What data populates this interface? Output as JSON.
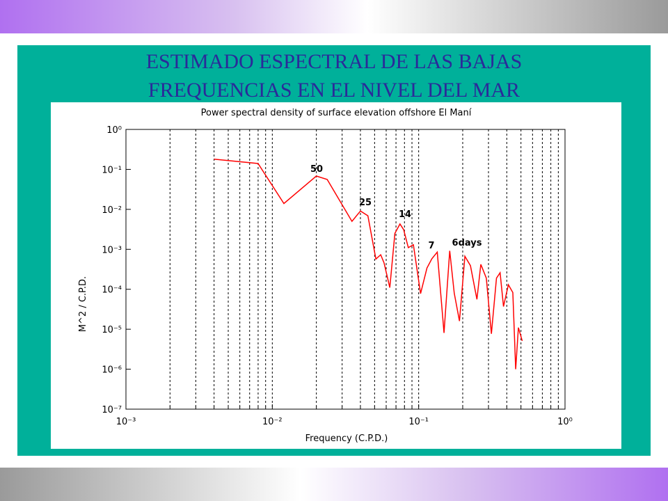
{
  "slide": {
    "title_lines": [
      "ESTIMADO ESPECTRAL DE LAS BAJAS",
      "FREQUENCIAS EN EL NIVEL DEL MAR"
    ]
  },
  "chart_data": {
    "type": "line",
    "title": "Power spectral density of surface elevation offshore El Maní",
    "x_label": "Frequency (C.P.D.)",
    "y_label": "M^2 / C.P.D.",
    "x_log": true,
    "y_log": true,
    "grid": "x",
    "color": "#ff0000",
    "xlim": [
      0.001,
      1
    ],
    "ylim": [
      1e-07,
      1
    ],
    "xticks": [
      {
        "value": 0.001,
        "label": "10⁻³"
      },
      {
        "value": 0.01,
        "label": "10⁻²"
      },
      {
        "value": 0.1,
        "label": "10⁻¹"
      },
      {
        "value": 1,
        "label": "10⁰"
      }
    ],
    "xminorticks": [
      0.002,
      0.003,
      0.004,
      0.005,
      0.006,
      0.007,
      0.008,
      0.009,
      0.02,
      0.03,
      0.04,
      0.05,
      0.06,
      0.07,
      0.08,
      0.09,
      0.2,
      0.3,
      0.4,
      0.5,
      0.6,
      0.7,
      0.8,
      0.9
    ],
    "yticks": [
      {
        "value": 1,
        "label": "10⁰"
      },
      {
        "value": 0.1,
        "label": "10⁻¹"
      },
      {
        "value": 0.01,
        "label": "10⁻²"
      },
      {
        "value": 0.001,
        "label": "10⁻³"
      },
      {
        "value": 0.0001,
        "label": "10⁻⁴"
      },
      {
        "value": 1e-05,
        "label": "10⁻⁵"
      },
      {
        "value": 1e-06,
        "label": "10⁻⁶"
      },
      {
        "value": 1e-07,
        "label": "10⁻⁷"
      }
    ],
    "annotations": [
      "50",
      "25",
      "14",
      "7",
      "6days"
    ],
    "x": [
      0.004,
      0.008,
      0.012,
      0.02,
      0.0237,
      0.035,
      0.04,
      0.045,
      0.051,
      0.055,
      0.058,
      0.0635,
      0.0688,
      0.0745,
      0.079,
      0.085,
      0.092,
      0.103,
      0.114,
      0.123,
      0.134,
      0.149,
      0.163,
      0.175,
      0.19,
      0.207,
      0.226,
      0.25,
      0.266,
      0.29,
      0.314,
      0.34,
      0.36,
      0.38,
      0.41,
      0.44,
      0.46,
      0.48,
      0.51
    ],
    "values": [
      0.18,
      0.14,
      0.014,
      0.068,
      0.056,
      0.005,
      0.0091,
      0.0069,
      0.00057,
      0.00073,
      0.00046,
      0.00011,
      0.0025,
      0.0043,
      0.0031,
      0.0011,
      0.0013,
      7.8e-05,
      0.00034,
      0.00058,
      0.00085,
      8.1e-06,
      0.00092,
      8e-05,
      1.6e-05,
      0.00067,
      0.00039,
      5.6e-05,
      0.00042,
      0.00019,
      7.7e-06,
      0.00019,
      0.00026,
      3.7e-05,
      0.00013,
      8.3e-05,
      1e-06,
      1.1e-05,
      5.1e-06
    ]
  }
}
